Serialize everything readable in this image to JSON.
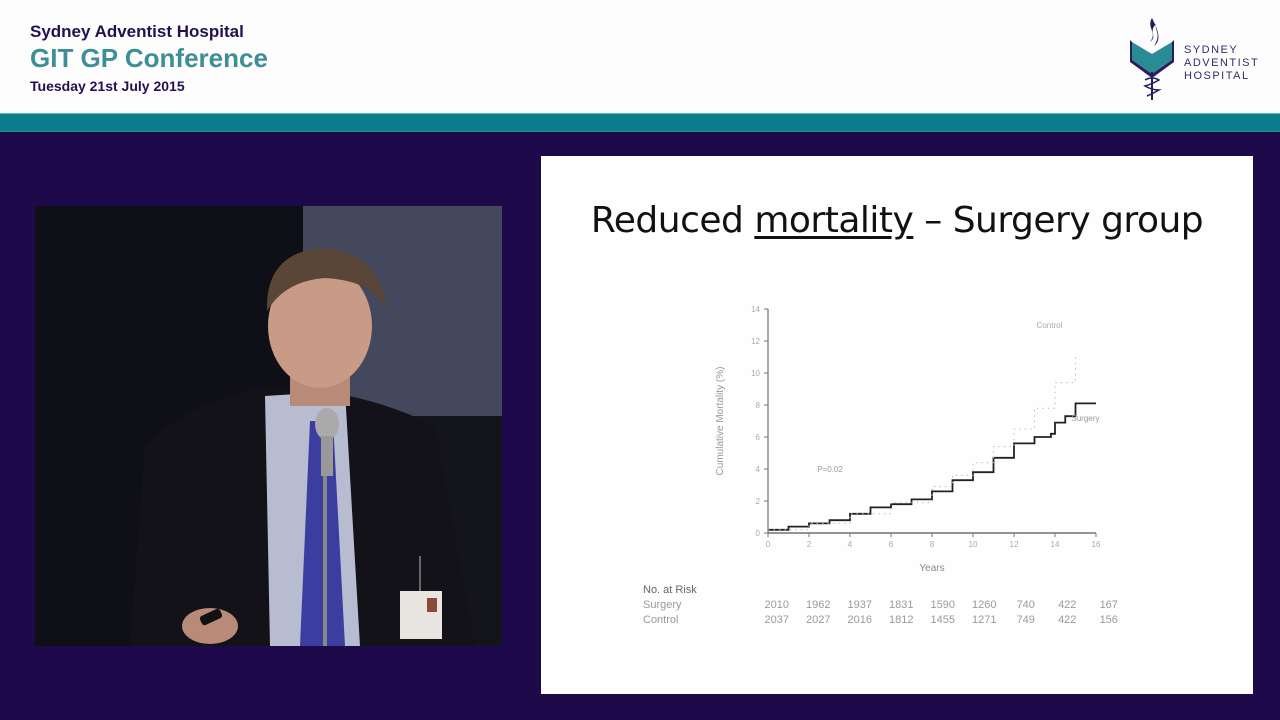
{
  "header": {
    "organization": "Sydney Adventist Hospital",
    "event": "GIT GP Conference",
    "date": "Tuesday 21st July 2015",
    "logo_lines": [
      "SYDNEY",
      "ADVENTIST",
      "HOSPITAL"
    ]
  },
  "colors": {
    "header_bg": "#fdfdfd",
    "navy": "#24104f",
    "teal": "#3e8e97",
    "teal_bar": "#0b7d8b",
    "stage_bg": "#1e0a4a"
  },
  "video": {
    "description": "Speaker in dark suit and blue tie at microphone, holding a presentation clicker"
  },
  "slide": {
    "title_pre": "Reduced ",
    "title_underlined": "mortality",
    "title_post": " – Surgery group"
  },
  "chart_data": {
    "type": "line",
    "title": "Reduced mortality – Surgery group",
    "xlabel": "Years",
    "ylabel": "Cumulative Mortality (%)",
    "xlim": [
      0,
      16
    ],
    "ylim": [
      0,
      14
    ],
    "xticks": [
      0,
      2,
      4,
      6,
      8,
      10,
      12,
      14,
      16
    ],
    "yticks": [
      0,
      2,
      4,
      6,
      8,
      10,
      12,
      14
    ],
    "grid": false,
    "annotations": [
      "P=0.02",
      "Control",
      "Surgery"
    ],
    "series": [
      {
        "name": "Surgery",
        "style": "solid",
        "x": [
          0,
          1,
          2,
          3,
          4,
          5,
          6,
          7,
          8,
          9,
          10,
          11,
          12,
          13,
          13.8,
          14,
          14.5,
          15,
          16
        ],
        "y": [
          0.2,
          0.4,
          0.6,
          0.8,
          1.2,
          1.6,
          1.8,
          2.1,
          2.6,
          3.3,
          3.8,
          4.7,
          5.6,
          6.0,
          6.2,
          6.9,
          7.3,
          8.1,
          8.1
        ]
      },
      {
        "name": "Control",
        "style": "dotted",
        "x": [
          0,
          2,
          4,
          6,
          8,
          9,
          10,
          11,
          12,
          13,
          14,
          15
        ],
        "y": [
          0.2,
          0.6,
          1.2,
          1.9,
          2.9,
          3.6,
          4.4,
          5.4,
          6.5,
          7.8,
          9.4,
          11.0
        ]
      }
    ],
    "at_risk_table": {
      "title": "No. at Risk",
      "columns": [
        0,
        2,
        4,
        6,
        8,
        10,
        12,
        14,
        16
      ],
      "rows": [
        {
          "label": "Surgery",
          "values": [
            "2010",
            "1962",
            "1937",
            "1831",
            "1590",
            "1260",
            "740",
            "422",
            "167"
          ]
        },
        {
          "label": "Control",
          "values": [
            "2037",
            "2027",
            "2016",
            "1812",
            "1455",
            "1271",
            "749",
            "422",
            "156"
          ]
        }
      ]
    }
  }
}
